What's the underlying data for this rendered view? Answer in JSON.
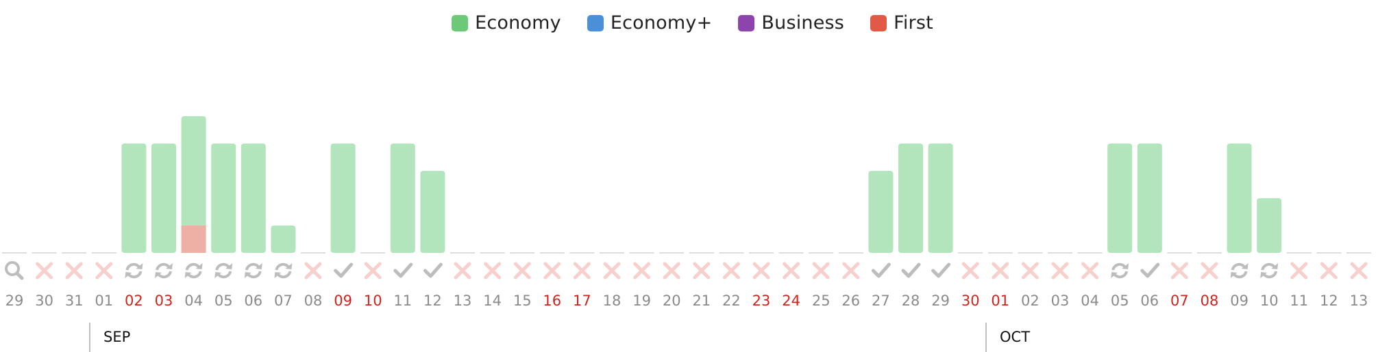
{
  "legend": [
    {
      "label": "Economy",
      "color": "#6cc978",
      "icon": "green-swatch-icon"
    },
    {
      "label": "Economy+",
      "color": "#4a90d9",
      "icon": "blue-swatch-icon"
    },
    {
      "label": "Business",
      "color": "#8e44ad",
      "icon": "purple-swatch-icon"
    },
    {
      "label": "First",
      "color": "#e05a45",
      "icon": "red-swatch-icon"
    }
  ],
  "colors": {
    "economy_bar": "#b3e5bd",
    "first_bar": "#eeb0a4",
    "baseline": "#dddddd",
    "status_x": "#f7cfcb",
    "status_gray": "#bdbdbd",
    "day_normal": "#8a8a8a",
    "day_highlight": "#d0231c",
    "month_divider": "#aaaaaa"
  },
  "chart_data": {
    "type": "bar",
    "stacked": true,
    "ylim": [
      0,
      5
    ],
    "grid": false,
    "legend_position": "top-center",
    "months": [
      {
        "label": "SEP",
        "start_index": 3
      },
      {
        "label": "OCT",
        "start_index": 33
      }
    ],
    "categories": [
      "29",
      "30",
      "31",
      "01",
      "02",
      "03",
      "04",
      "05",
      "06",
      "07",
      "08",
      "09",
      "10",
      "11",
      "12",
      "13",
      "14",
      "15",
      "16",
      "17",
      "18",
      "19",
      "20",
      "21",
      "22",
      "23",
      "24",
      "25",
      "26",
      "27",
      "28",
      "29",
      "30",
      "01",
      "02",
      "03",
      "04",
      "05",
      "06",
      "07",
      "08",
      "09",
      "10",
      "11",
      "12",
      "13"
    ],
    "highlighted": [
      false,
      false,
      false,
      false,
      true,
      true,
      false,
      false,
      false,
      false,
      false,
      true,
      true,
      false,
      false,
      false,
      false,
      false,
      true,
      true,
      false,
      false,
      false,
      false,
      false,
      true,
      true,
      false,
      false,
      false,
      false,
      false,
      true,
      true,
      false,
      false,
      false,
      false,
      false,
      true,
      true,
      false,
      false,
      false,
      false,
      false
    ],
    "status": [
      "search",
      "x",
      "x",
      "x",
      "refresh",
      "refresh",
      "refresh",
      "refresh",
      "refresh",
      "refresh",
      "x",
      "check",
      "x",
      "check",
      "check",
      "x",
      "x",
      "x",
      "x",
      "x",
      "x",
      "x",
      "x",
      "x",
      "x",
      "x",
      "x",
      "x",
      "x",
      "check",
      "check",
      "check",
      "x",
      "x",
      "x",
      "x",
      "x",
      "refresh",
      "check",
      "x",
      "x",
      "refresh",
      "refresh",
      "x",
      "x",
      "x"
    ],
    "series": [
      {
        "name": "Economy",
        "values": [
          0,
          0,
          0,
          0,
          4,
          4,
          4,
          4,
          4,
          1,
          0,
          4,
          0,
          4,
          3,
          0,
          0,
          0,
          0,
          0,
          0,
          0,
          0,
          0,
          0,
          0,
          0,
          0,
          0,
          3,
          4,
          4,
          0,
          0,
          0,
          0,
          0,
          4,
          4,
          0,
          0,
          4,
          2,
          0,
          0,
          0
        ]
      },
      {
        "name": "First",
        "values": [
          0,
          0,
          0,
          0,
          0,
          0,
          1,
          0,
          0,
          0,
          0,
          0,
          0,
          0,
          0,
          0,
          0,
          0,
          0,
          0,
          0,
          0,
          0,
          0,
          0,
          0,
          0,
          0,
          0,
          0,
          0,
          0,
          0,
          0,
          0,
          0,
          0,
          0,
          0,
          0,
          0,
          0,
          0,
          0,
          0,
          0
        ]
      }
    ]
  }
}
